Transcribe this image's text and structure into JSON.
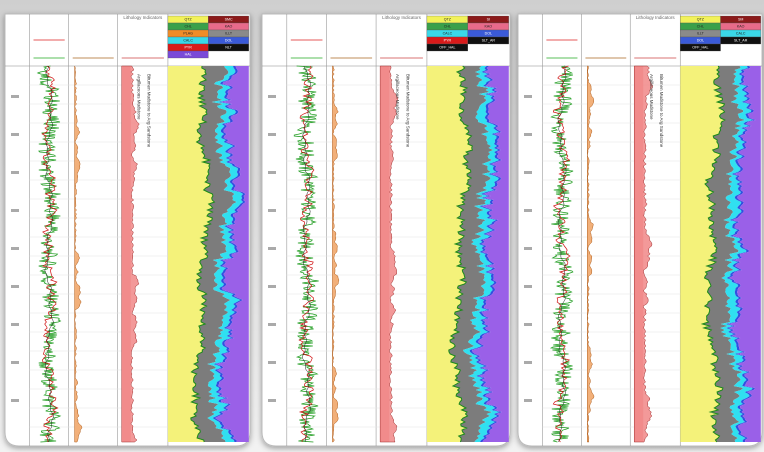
{
  "panels": [
    {
      "header": "Lithology Indicators",
      "notes": [
        "Bitumen Mudstone to Arg Sandstone",
        "Argillaceous Mudstone"
      ],
      "legend": [
        {
          "label": "QTZ",
          "color": "#f2f25a"
        },
        {
          "label": "SMC",
          "color": "#8b1a1a"
        },
        {
          "label": "CHL",
          "color": "#3aa04a"
        },
        {
          "label": "KAO",
          "color": "#e86a8a"
        },
        {
          "label": "PLAG",
          "color": "#f08c28"
        },
        {
          "label": "ILLT",
          "color": "#8a8a8a"
        },
        {
          "label": "CALC",
          "color": "#3ad8e8"
        },
        {
          "label": "DOL",
          "color": "#3a5ad8"
        },
        {
          "label": "PYR",
          "color": "#d81a1a"
        },
        {
          "label": "NLT",
          "color": "#101010"
        },
        {
          "label": "HAL",
          "color": "#7a4ad8"
        }
      ]
    },
    {
      "header": "Lithology Indicators",
      "notes": [
        "Bitumen Mudstone to Arg Sandstone",
        "Argillaceous Mudstone"
      ],
      "legend": [
        {
          "label": "QTZ",
          "color": "#f2f25a"
        },
        {
          "label": "SI",
          "color": "#8b1a1a"
        },
        {
          "label": "CHL",
          "color": "#3aa04a"
        },
        {
          "label": "KAO",
          "color": "#e86a8a"
        },
        {
          "label": "CALC",
          "color": "#3ad8e8"
        },
        {
          "label": "DOL",
          "color": "#3a5ad8"
        },
        {
          "label": "PYR",
          "color": "#d81a1a"
        },
        {
          "label": "SLT_AR",
          "color": "#101010"
        },
        {
          "label": "OFF_HAL",
          "color": "#101010"
        }
      ]
    },
    {
      "header": "Lithology Indicators",
      "notes": [
        "Bitumen Mudstone to Arg Sandstone",
        "Argillaceous Mudstone"
      ],
      "legend": [
        {
          "label": "QTZ",
          "color": "#f2f25a"
        },
        {
          "label": "SM",
          "color": "#8b1a1a"
        },
        {
          "label": "CHL",
          "color": "#3aa04a"
        },
        {
          "label": "KAO",
          "color": "#e86a8a"
        },
        {
          "label": "ILLT",
          "color": "#8a8a8a"
        },
        {
          "label": "CALC",
          "color": "#3ad8e8"
        },
        {
          "label": "DOL",
          "color": "#3a5ad8"
        },
        {
          "label": "SLT_AR",
          "color": "#101010"
        },
        {
          "label": "OFF_HAL",
          "color": "#101010"
        }
      ]
    }
  ]
}
